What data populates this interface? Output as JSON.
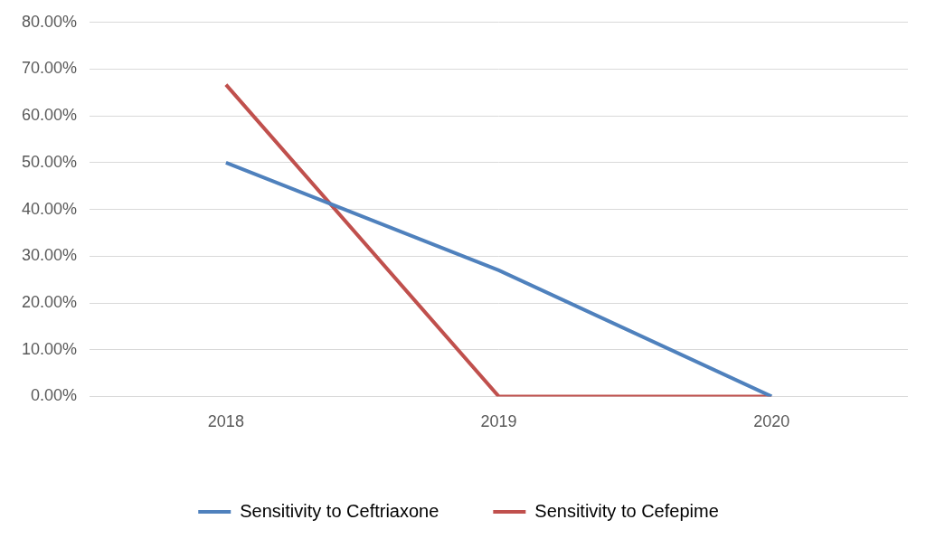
{
  "chart_data": {
    "type": "line",
    "categories": [
      "2018",
      "2019",
      "2020"
    ],
    "series": [
      {
        "name": "Sensitivity to Ceftriaxone",
        "color": "#4f81bd",
        "marker": "none",
        "values": [
          50,
          27,
          0
        ]
      },
      {
        "name": "Sensitivity to Cefepime",
        "color": "#c0504d",
        "marker": "none",
        "values": [
          66.7,
          0,
          0
        ]
      }
    ],
    "ylim": [
      0,
      80
    ],
    "yticks": [
      {
        "value": 0,
        "label": "0.00%"
      },
      {
        "value": 10,
        "label": "10.00%"
      },
      {
        "value": 20,
        "label": "20.00%"
      },
      {
        "value": 30,
        "label": "30.00%"
      },
      {
        "value": 40,
        "label": "40.00%"
      },
      {
        "value": 50,
        "label": "50.00%"
      },
      {
        "value": 60,
        "label": "60.00%"
      },
      {
        "value": 70,
        "label": "70.00%"
      },
      {
        "value": 80,
        "label": "80.00%"
      }
    ],
    "grid": true,
    "legend": "bottom"
  }
}
